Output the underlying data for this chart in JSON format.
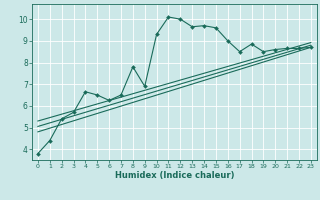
{
  "xlabel": "Humidex (Indice chaleur)",
  "background_color": "#cce8e8",
  "grid_color": "#ffffff",
  "line_color": "#1a6b5a",
  "xlim": [
    -0.5,
    23.5
  ],
  "ylim": [
    3.5,
    10.7
  ],
  "xticks": [
    0,
    1,
    2,
    3,
    4,
    5,
    6,
    7,
    8,
    9,
    10,
    11,
    12,
    13,
    14,
    15,
    16,
    17,
    18,
    19,
    20,
    21,
    22,
    23
  ],
  "yticks": [
    4,
    5,
    6,
    7,
    8,
    9,
    10
  ],
  "main_x": [
    0,
    1,
    2,
    3,
    4,
    5,
    6,
    7,
    8,
    9,
    10,
    11,
    12,
    13,
    14,
    15,
    16,
    17,
    18,
    19,
    20,
    21,
    22,
    23
  ],
  "main_y": [
    3.8,
    4.4,
    5.4,
    5.7,
    6.65,
    6.5,
    6.25,
    6.5,
    7.8,
    6.9,
    9.3,
    10.1,
    10.0,
    9.65,
    9.7,
    9.6,
    9.0,
    8.5,
    8.85,
    8.5,
    8.6,
    8.65,
    8.65,
    8.7
  ],
  "trend1_x": [
    0,
    23
  ],
  "trend1_y": [
    4.8,
    8.7
  ],
  "trend2_x": [
    0,
    23
  ],
  "trend2_y": [
    5.05,
    8.8
  ],
  "trend3_x": [
    0,
    23
  ],
  "trend3_y": [
    5.3,
    8.92
  ]
}
